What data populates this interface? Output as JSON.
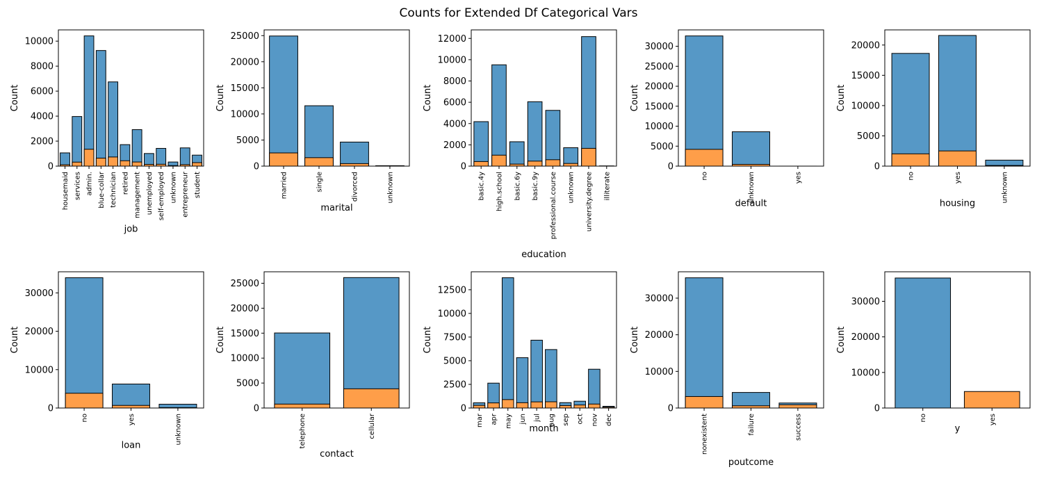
{
  "title": "Counts for Extended Df Categorical Vars",
  "colors": {
    "series_no": "#5698c6",
    "series_yes": "#fe9e49",
    "edge": "#000000"
  },
  "chart_data": [
    {
      "type": "bar",
      "xlabel": "job",
      "ylabel": "Count",
      "ylim": [
        0,
        10900
      ],
      "yticks": [
        0,
        2000,
        4000,
        6000,
        8000,
        10000
      ],
      "categories": [
        "housemaid",
        "services",
        "admin.",
        "blue-collar",
        "technician",
        "retired",
        "management",
        "unemployed",
        "self-employed",
        "unknown",
        "entrepreneur",
        "student"
      ],
      "series": [
        {
          "values": [
            1060,
            3970,
            10420,
            9250,
            6740,
            1720,
            2920,
            1010,
            1420,
            330,
            1460,
            880
          ]
        },
        {
          "values": [
            110,
            320,
            1350,
            640,
            730,
            430,
            330,
            140,
            150,
            40,
            120,
            280
          ]
        }
      ]
    },
    {
      "type": "bar",
      "xlabel": "marital",
      "ylabel": "Count",
      "ylim": [
        0,
        26100
      ],
      "yticks": [
        0,
        5000,
        10000,
        15000,
        20000,
        25000
      ],
      "categories": [
        "married",
        "single",
        "divorced",
        "unknown"
      ],
      "series": [
        {
          "values": [
            24930,
            11570,
            4610,
            80
          ]
        },
        {
          "values": [
            2530,
            1620,
            480,
            10
          ]
        }
      ]
    },
    {
      "type": "bar",
      "xlabel": "education",
      "ylabel": "Count",
      "ylim": [
        0,
        12800
      ],
      "yticks": [
        0,
        2000,
        4000,
        6000,
        8000,
        10000,
        12000
      ],
      "categories": [
        "basic.4y",
        "high.school",
        "basic.6y",
        "basic.9y",
        "professional.course",
        "unknown",
        "university.degree",
        "illiterate"
      ],
      "series": [
        {
          "values": [
            4180,
            9520,
            2290,
            6050,
            5240,
            1730,
            12170,
            20
          ]
        },
        {
          "values": [
            430,
            1030,
            190,
            470,
            600,
            250,
            1670,
            4
          ]
        }
      ]
    },
    {
      "type": "bar",
      "xlabel": "default",
      "ylabel": "Count",
      "ylim": [
        0,
        34100
      ],
      "yticks": [
        0,
        5000,
        10000,
        15000,
        20000,
        25000,
        30000
      ],
      "categories": [
        "no",
        "unknown",
        "yes"
      ],
      "series": [
        {
          "values": [
            32590,
            8600,
            3
          ]
        },
        {
          "values": [
            4200,
            440,
            0
          ]
        }
      ]
    },
    {
      "type": "bar",
      "xlabel": "housing",
      "ylabel": "Count",
      "ylim": [
        0,
        22500
      ],
      "yticks": [
        0,
        5000,
        10000,
        15000,
        20000
      ],
      "categories": [
        "no",
        "yes",
        "unknown"
      ],
      "series": [
        {
          "values": [
            18620,
            21580,
            990
          ]
        },
        {
          "values": [
            2030,
            2510,
            110
          ]
        }
      ]
    },
    {
      "type": "bar",
      "xlabel": "loan",
      "ylabel": "Count",
      "ylim": [
        0,
        35500
      ],
      "yticks": [
        0,
        10000,
        20000,
        30000
      ],
      "categories": [
        "no",
        "yes",
        "unknown"
      ],
      "series": [
        {
          "values": [
            33950,
            6250,
            990
          ]
        },
        {
          "values": [
            3850,
            680,
            110
          ]
        }
      ]
    },
    {
      "type": "bar",
      "xlabel": "contact",
      "ylabel": "Count",
      "ylim": [
        0,
        27300
      ],
      "yticks": [
        0,
        5000,
        10000,
        15000,
        20000,
        25000
      ],
      "categories": [
        "telephone",
        "cellular"
      ],
      "series": [
        {
          "values": [
            15040,
            26140
          ]
        },
        {
          "values": [
            790,
            3850
          ]
        }
      ]
    },
    {
      "type": "bar",
      "xlabel": "month",
      "ylabel": "Count",
      "ylim": [
        0,
        14400
      ],
      "yticks": [
        0,
        2500,
        5000,
        7500,
        10000,
        12500
      ],
      "categories": [
        "mar",
        "apr",
        "may",
        "jun",
        "jul",
        "aug",
        "sep",
        "oct",
        "nov",
        "dec"
      ],
      "series": [
        {
          "values": [
            550,
            2630,
            13770,
            5320,
            7170,
            6180,
            570,
            720,
            4100,
            180
          ]
        },
        {
          "values": [
            280,
            540,
            890,
            560,
            650,
            660,
            260,
            320,
            420,
            90
          ]
        }
      ]
    },
    {
      "type": "bar",
      "xlabel": "poutcome",
      "ylabel": "Count",
      "ylim": [
        0,
        37200
      ],
      "yticks": [
        0,
        10000,
        20000,
        30000
      ],
      "categories": [
        "nonexistent",
        "failure",
        "success"
      ],
      "series": [
        {
          "values": [
            35560,
            4250,
            1370
          ]
        },
        {
          "values": [
            3140,
            610,
            890
          ]
        }
      ]
    },
    {
      "type": "bar",
      "xlabel": "y",
      "ylabel": "Count",
      "ylim": [
        0,
        38300
      ],
      "yticks": [
        0,
        10000,
        20000,
        30000
      ],
      "categories": [
        "no",
        "yes"
      ],
      "series": [
        {
          "values": [
            36550,
            0
          ]
        },
        {
          "values": [
            0,
            4640
          ]
        }
      ]
    }
  ]
}
